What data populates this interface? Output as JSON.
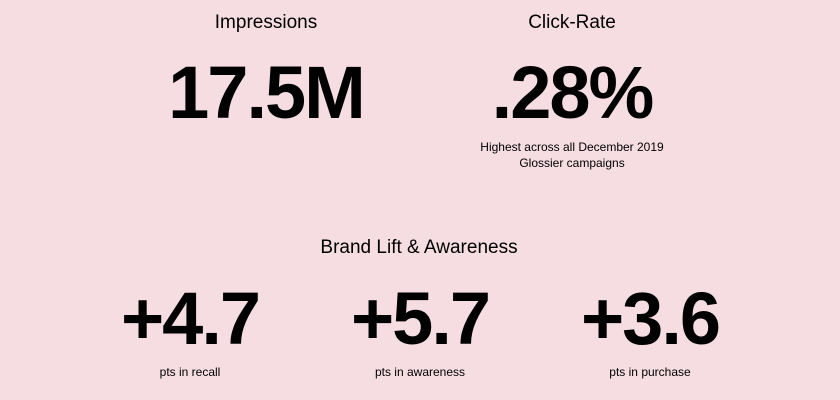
{
  "top_stats": [
    {
      "label": "Impressions",
      "value": "17.5M"
    },
    {
      "label": "Click-Rate",
      "value": ".28%",
      "note": [
        "Highest across all December 2019",
        "Glossier campaigns"
      ]
    }
  ],
  "brand_lift": {
    "title": "Brand Lift & Awareness",
    "stats": [
      {
        "value": "+4.7",
        "caption": "pts in recall"
      },
      {
        "value": "+5.7",
        "caption": "pts in awareness"
      },
      {
        "value": "+3.6",
        "caption": "pts in purchase"
      }
    ]
  }
}
